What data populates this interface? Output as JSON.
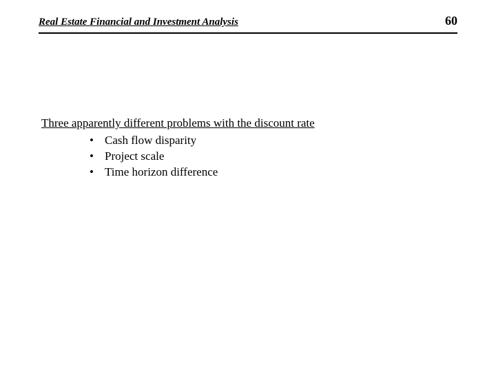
{
  "header": {
    "title": "Real Estate Financial and Investment Analysis",
    "page_number": "60"
  },
  "content": {
    "section_title": "Three apparently different problems with the discount rate",
    "bullets": [
      "Cash flow disparity",
      "Project scale",
      "Time horizon difference"
    ]
  },
  "style": {
    "background_color": "#ffffff",
    "text_color": "#000000",
    "title_fontsize": 15,
    "body_fontsize": 17,
    "page_number_fontsize": 18
  }
}
